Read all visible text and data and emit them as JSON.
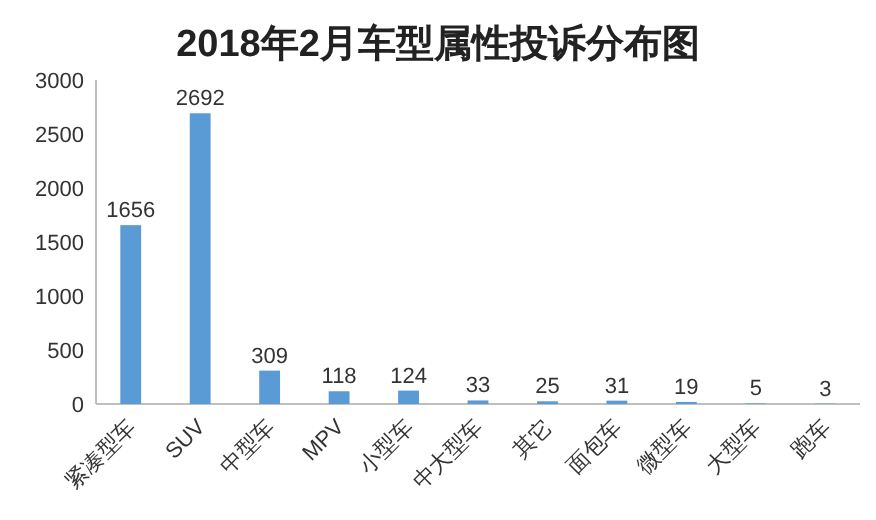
{
  "chart_data": {
    "type": "bar",
    "title": "2018年2月车型属性投诉分布图",
    "categories": [
      "紧凑型车",
      "SUV",
      "中型车",
      "MPV",
      "小型车",
      "中大型车",
      "其它",
      "面包车",
      "微型车",
      "大型车",
      "跑车"
    ],
    "values": [
      1656,
      2692,
      309,
      118,
      124,
      33,
      25,
      31,
      19,
      5,
      3
    ],
    "color": "#5b9bd5",
    "ylim": [
      0,
      3000
    ],
    "yticks": [
      0,
      500,
      1000,
      1500,
      2000,
      2500,
      3000
    ],
    "data_labels": true,
    "grid": false
  }
}
